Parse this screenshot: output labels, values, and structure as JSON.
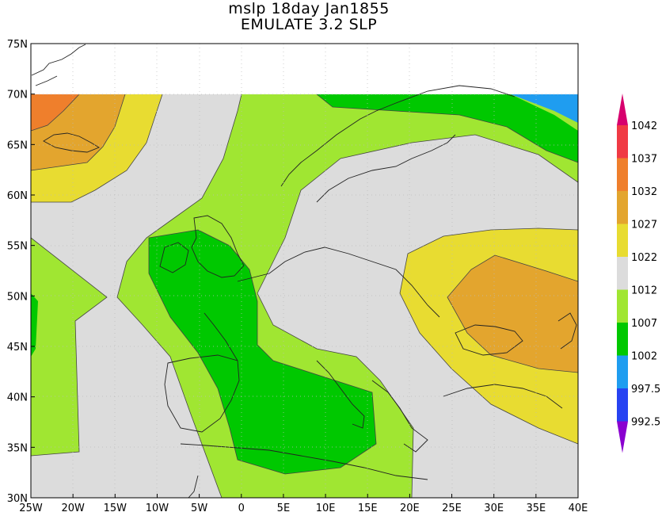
{
  "title_line1": "mslp 18day Jan1855",
  "title_line2": "EMULATE 3.2 SLP",
  "lat_labels": [
    "75N",
    "70N",
    "65N",
    "60N",
    "55N",
    "50N",
    "45N",
    "40N",
    "35N",
    "30N"
  ],
  "lon_labels": [
    "25W",
    "20W",
    "15W",
    "10W",
    "5W",
    "0",
    "5E",
    "10E",
    "15E",
    "20E",
    "25E",
    "30E",
    "35E",
    "40E"
  ],
  "colorbar": {
    "labels": [
      "1042",
      "1037",
      "1032",
      "1027",
      "1022",
      "1012",
      "1007",
      "1002",
      "997.5",
      "992.5"
    ],
    "colors": [
      "#d7006e",
      "#f03a44",
      "#ef7f2c",
      "#e3a52e",
      "#e8dc31",
      "#dcdcdc",
      "#a0e632",
      "#00c800",
      "#1f9df0",
      "#2743f2",
      "#8a00d0"
    ]
  },
  "map": {
    "projection": "lat-lon",
    "lon_range": [
      -25,
      40
    ],
    "lat_range": [
      30,
      75
    ],
    "data_lat_max": 70,
    "contour_fill": "shaded mean sea level pressure (hPa)"
  }
}
